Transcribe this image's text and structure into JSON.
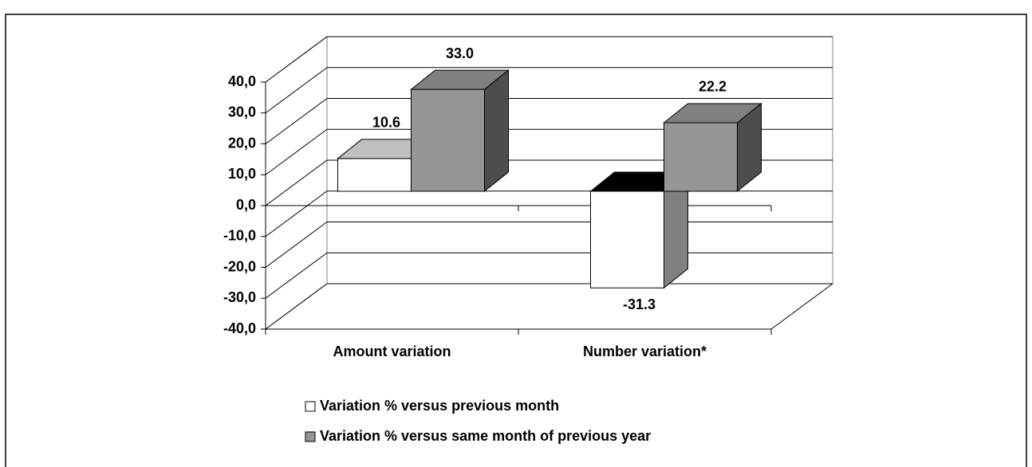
{
  "chart_data": {
    "type": "bar3d",
    "categories": [
      "Amount variation",
      "Number variation*"
    ],
    "series": [
      {
        "name": "Variation % versus previous month",
        "color": "#ffffff",
        "values": [
          10.6,
          -31.3
        ],
        "value_labels": [
          "10.6",
          "-31.3"
        ]
      },
      {
        "name": "Variation % versus same month of previous year",
        "color": "#969696",
        "values": [
          33.0,
          22.2
        ],
        "value_labels": [
          "33.0",
          "22.2"
        ]
      }
    ],
    "ylim": [
      -40,
      40
    ],
    "yticks": [
      {
        "value": -40,
        "label": "-40,0"
      },
      {
        "value": -30,
        "label": "-30,0"
      },
      {
        "value": -20,
        "label": "-20,0"
      },
      {
        "value": -10,
        "label": "-10,0"
      },
      {
        "value": 0,
        "label": "0,0"
      },
      {
        "value": 10,
        "label": "10,0"
      },
      {
        "value": 20,
        "label": "20,0"
      },
      {
        "value": 30,
        "label": "30,0"
      },
      {
        "value": 40,
        "label": "40,0"
      }
    ],
    "grid": true,
    "legend": "bottom"
  }
}
